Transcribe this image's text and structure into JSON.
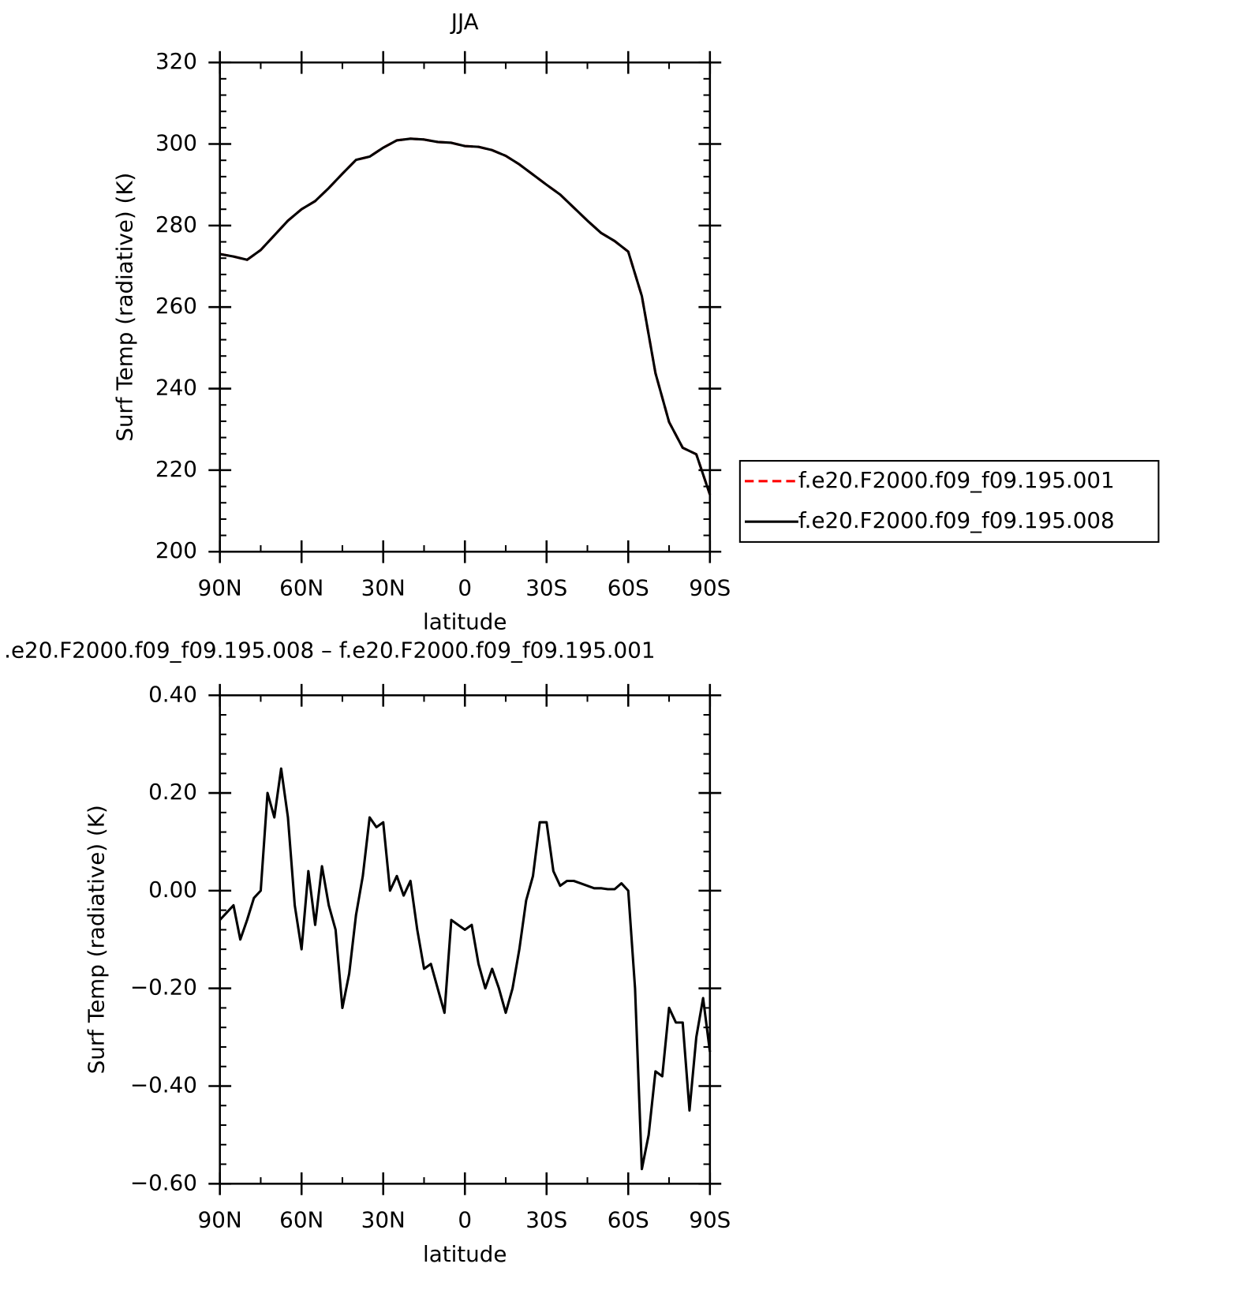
{
  "chart_data": [
    {
      "type": "line",
      "title": "JJA",
      "y_label": "Surf Temp (radiative) (K)",
      "x_label": "latitude",
      "x": [
        90,
        85,
        80,
        75,
        70,
        65,
        60,
        55,
        50,
        45,
        40,
        35,
        30,
        25,
        20,
        15,
        10,
        5,
        0,
        -5,
        -10,
        -15,
        -20,
        -25,
        -30,
        -35,
        -40,
        -45,
        -50,
        -55,
        -60,
        -65,
        -70,
        -75,
        -80,
        -85,
        -90
      ],
      "series": [
        {
          "name": "f.e20.F2000.f09_f09.195.001",
          "color": "#ff0000",
          "dash": true,
          "values": [
            273,
            272.4,
            271.6,
            274,
            277.6,
            281.2,
            284,
            286,
            289.2,
            292.7,
            296.1,
            296.9,
            299.1,
            300.9,
            301.3,
            301.1,
            300.5,
            300.3,
            299.5,
            299.3,
            298.5,
            297.1,
            295,
            292.5,
            290,
            287.6,
            284.4,
            281.2,
            278.2,
            276.2,
            273.6,
            262.7,
            243.8,
            231.8,
            225.5,
            223.9,
            214
          ]
        },
        {
          "name": "f.e20.F2000.f09_f09.195.008",
          "color": "#000000",
          "dash": false,
          "values": [
            273,
            272.4,
            271.6,
            274,
            277.6,
            281.2,
            284,
            286,
            289.2,
            292.7,
            296.1,
            296.9,
            299.1,
            300.9,
            301.3,
            301.1,
            300.5,
            300.3,
            299.5,
            299.3,
            298.5,
            297.1,
            295,
            292.5,
            290,
            287.6,
            284.4,
            281.2,
            278.2,
            276.2,
            273.6,
            262.7,
            243.8,
            231.8,
            225.5,
            223.9,
            214
          ]
        }
      ],
      "xlim": [
        90,
        -90
      ],
      "xticks": [
        {
          "value": 90,
          "label": "90N"
        },
        {
          "value": 60,
          "label": "60N"
        },
        {
          "value": 30,
          "label": "30N"
        },
        0,
        {
          "value": -30,
          "label": "30S"
        },
        {
          "value": -60,
          "label": "60S"
        },
        {
          "value": -90,
          "label": "90S"
        }
      ],
      "ylim": [
        200,
        320
      ],
      "yticks": [
        200,
        220,
        240,
        260,
        280,
        300,
        320
      ],
      "legend": "right"
    },
    {
      "type": "line",
      "title": ".e20.F2000.f09_f09.195.008 – f.e20.F2000.f09_f09.195.001",
      "y_label": "Surf Temp (radiative) (K)",
      "x_label": "latitude",
      "x": [
        90,
        87.5,
        85,
        82.5,
        80,
        77.5,
        75,
        72.5,
        70,
        67.5,
        65,
        62.5,
        60,
        57.5,
        55,
        52.5,
        50,
        47.5,
        45,
        42.5,
        40,
        37.5,
        35,
        32.5,
        30,
        27.5,
        25,
        22.5,
        20,
        17.5,
        15,
        12.5,
        10,
        7.5,
        5,
        2.5,
        0,
        -2.5,
        -5,
        -7.5,
        -10,
        -12.5,
        -15,
        -17.5,
        -20,
        -22.5,
        -25,
        -27.5,
        -30,
        -32.5,
        -35,
        -37.5,
        -40,
        -42.5,
        -45,
        -47.5,
        -50,
        -52.5,
        -55,
        -57.5,
        -60,
        -62.5,
        -65,
        -67.5,
        -70,
        -72.5,
        -75,
        -77.5,
        -80,
        -82.5,
        -85,
        -87.5,
        -90
      ],
      "series": [
        {
          "color": "#000000",
          "dash": false,
          "values": [
            -0.06,
            -0.045,
            -0.03,
            -0.1,
            -0.06,
            -0.015,
            0,
            0.2,
            0.15,
            0.25,
            0.15,
            -0.03,
            -0.12,
            0.04,
            -0.07,
            0.05,
            -0.03,
            -0.08,
            -0.24,
            -0.17,
            -0.05,
            0.03,
            0.15,
            0.13,
            0.14,
            0,
            0.03,
            -0.01,
            0.02,
            -0.08,
            -0.16,
            -0.15,
            -0.2,
            -0.25,
            -0.06,
            -0.07,
            -0.08,
            -0.07,
            -0.15,
            -0.2,
            -0.16,
            -0.2,
            -0.25,
            -0.2,
            -0.12,
            -0.02,
            0.03,
            0.14,
            0.14,
            0.04,
            0.01,
            0.02,
            0.02,
            0.015,
            0.01,
            0.005,
            0.005,
            0.003,
            0.003,
            0.015,
            0,
            -0.2,
            -0.57,
            -0.5,
            -0.37,
            -0.38,
            -0.24,
            -0.27,
            -0.27,
            -0.45,
            -0.3,
            -0.22,
            -0.33
          ]
        }
      ],
      "xlim": [
        90,
        -90
      ],
      "xticks": [
        {
          "value": 90,
          "label": "90N"
        },
        {
          "value": 60,
          "label": "60N"
        },
        {
          "value": 30,
          "label": "30N"
        },
        0,
        {
          "value": -30,
          "label": "30S"
        },
        {
          "value": -60,
          "label": "60S"
        },
        {
          "value": -90,
          "label": "90S"
        }
      ],
      "ylim": [
        -0.6,
        0.4
      ],
      "yticks": [
        {
          "value": -0.6,
          "label": "−0.60"
        },
        {
          "value": -0.4,
          "label": "−0.40"
        },
        {
          "value": -0.2,
          "label": "−0.20"
        },
        {
          "value": 0,
          "label": "0.00"
        },
        {
          "value": 0.2,
          "label": "0.20"
        },
        {
          "value": 0.4,
          "label": "0.40"
        }
      ]
    }
  ]
}
